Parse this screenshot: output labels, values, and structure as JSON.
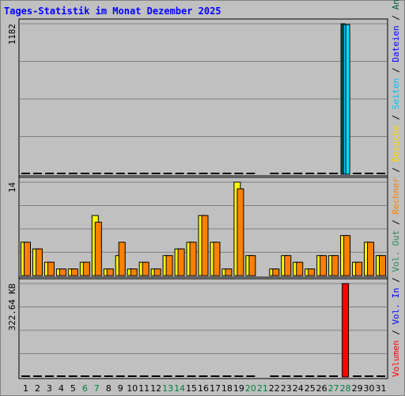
{
  "title": "Tages-Statistik im Monat Dezember 2025",
  "colors": {
    "background": "#c0c0c0",
    "gridline": "#808080",
    "title": "#0000ff",
    "anfragen": "#006040",
    "dateien": "#00c0ff",
    "seiten": "#00e0ff",
    "besuche": "#ffff00",
    "rechner": "#ff8000",
    "volumen": "#ff0000",
    "weekend_label": "#008040",
    "day_label": "#000000",
    "legend_sep": "#000000",
    "legend_vol_out": "#2e8b57",
    "legend_vol_in": "#0000ff"
  },
  "chart_data": {
    "type": "bar",
    "categories": [
      "1",
      "2",
      "3",
      "4",
      "5",
      "6",
      "7",
      "8",
      "9",
      "10",
      "11",
      "12",
      "13",
      "14",
      "15",
      "16",
      "17",
      "18",
      "19",
      "20",
      "21",
      "22",
      "23",
      "24",
      "25",
      "26",
      "27",
      "28",
      "29",
      "30",
      "31"
    ],
    "weekend_days": [
      "6",
      "7",
      "13",
      "14",
      "20",
      "21",
      "27",
      "28"
    ],
    "panels": [
      {
        "id": "hits",
        "max_label": "1182",
        "ylim": [
          0,
          1182
        ],
        "series": [
          {
            "name": "Anfragen",
            "color": "#006040",
            "values": [
              1,
              1,
              1,
              1,
              1,
              1,
              6,
              1,
              3,
              1,
              6,
              1,
              1,
              1,
              1,
              6,
              1,
              1,
              6,
              1,
              0,
              1,
              1,
              1,
              1,
              1,
              1,
              1182,
              1,
              1,
              1
            ]
          },
          {
            "name": "Dateien",
            "color": "#00c0ff",
            "values": [
              1,
              1,
              1,
              1,
              1,
              1,
              5,
              1,
              2,
              1,
              5,
              1,
              1,
              1,
              1,
              5,
              1,
              1,
              5,
              1,
              0,
              1,
              1,
              1,
              1,
              1,
              1,
              1176,
              1,
              1,
              1
            ]
          },
          {
            "name": "Seiten",
            "color": "#00e0ff",
            "values": [
              1,
              1,
              1,
              1,
              1,
              1,
              5,
              1,
              2,
              1,
              5,
              1,
              1,
              1,
              1,
              5,
              1,
              1,
              5,
              1,
              0,
              1,
              1,
              1,
              1,
              1,
              1,
              1176,
              1,
              1,
              1
            ]
          }
        ]
      },
      {
        "id": "visits",
        "max_label": "14",
        "ylim": [
          0,
          14
        ],
        "series": [
          {
            "name": "Besuche",
            "color": "#ffff00",
            "values": [
              5,
              4,
              2,
              1,
              1,
              2,
              9,
              1,
              3,
              1,
              2,
              1,
              3,
              4,
              5,
              9,
              5,
              1,
              14,
              3,
              0,
              1,
              3,
              2,
              1,
              3,
              3,
              6,
              2,
              5,
              3
            ]
          },
          {
            "name": "Rechner",
            "color": "#ff8000",
            "values": [
              5,
              4,
              2,
              1,
              1,
              2,
              8,
              1,
              5,
              1,
              2,
              1,
              3,
              4,
              5,
              9,
              5,
              1,
              13,
              3,
              0,
              1,
              3,
              2,
              1,
              3,
              3,
              6,
              2,
              5,
              3
            ]
          }
        ]
      },
      {
        "id": "volume",
        "max_label": "322.64 KB",
        "ylim": [
          0,
          322.64
        ],
        "unit": "KB",
        "series": [
          {
            "name": "Volumen",
            "color": "#ff0000",
            "values": [
              0,
              0,
              0,
              0,
              0,
              0,
              0,
              0,
              0,
              0,
              0,
              0,
              0,
              0,
              0,
              0,
              0,
              0,
              0,
              0,
              0,
              0,
              0,
              0,
              0,
              0,
              0,
              322.64,
              0,
              0,
              0
            ]
          }
        ]
      }
    ],
    "legend_right": [
      {
        "label": "Anfragen",
        "color": "#006040",
        "panel": "hits"
      },
      {
        "label": "Dateien",
        "color": "#0000ff",
        "panel": "hits"
      },
      {
        "label": "Seiten",
        "color": "#00c0ff",
        "panel": "hits"
      },
      {
        "label": "Besuche",
        "color": "#ffd700",
        "panel": "visits"
      },
      {
        "label": "Rechner",
        "color": "#ff8000",
        "panel": "visits"
      },
      {
        "label": "Vol. Out",
        "color": "#2e8b57",
        "panel": "volume"
      },
      {
        "label": "Vol. In",
        "color": "#0000ff",
        "panel": "volume"
      },
      {
        "label": "Volumen",
        "color": "#ff0000",
        "panel": "volume"
      }
    ]
  }
}
